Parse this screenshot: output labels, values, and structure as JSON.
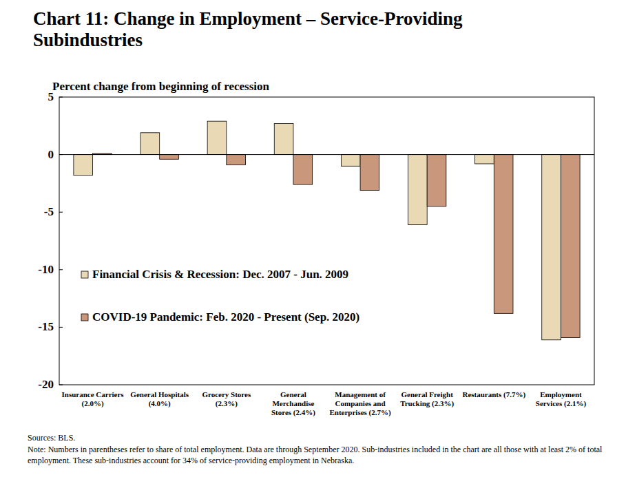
{
  "chart_data": {
    "type": "bar",
    "title": "Chart 11: Change in Employment – Service-Providing Subindustries",
    "y_label": "Percent change from beginning of recession",
    "categories": [
      "Insurance Carriers (2.0%)",
      "General Hospitals (4.0%)",
      "Grocery Stores (2.3%)",
      "General Merchandise Stores (2.4%)",
      "Management of Companies and Enterprises (2.7%)",
      "General Freight Trucking (2.3%)",
      "Restaurants (7.7%)",
      "Employment Services (2.1%)"
    ],
    "series": [
      {
        "name": "Financial Crisis & Recession: Dec. 2007 - Jun. 2009",
        "color": "#e9dab5",
        "values": [
          -1.8,
          1.9,
          2.9,
          2.7,
          -1.0,
          -6.1,
          -0.8,
          -16.1
        ]
      },
      {
        "name": "COVID-19 Pandemic: Feb. 2020 - Present (Sep. 2020)",
        "color": "#c9977b",
        "values": [
          0.1,
          -0.4,
          -0.9,
          -2.6,
          -3.1,
          -4.5,
          -13.8,
          -15.9
        ]
      }
    ],
    "ylim": [
      -20,
      5
    ],
    "yticks": [
      -20,
      -15,
      -10,
      -5,
      0,
      5
    ],
    "grid": false,
    "legend": "lower left",
    "source": "Sources: BLS.",
    "note": "Note: Numbers in parentheses refer to share of total employment.  Data are through September 2020. Sub-industries included in the chart are all those with at least 2% of total employment. These sub-industries account for 34% of service-providing employment in Nebraska."
  }
}
